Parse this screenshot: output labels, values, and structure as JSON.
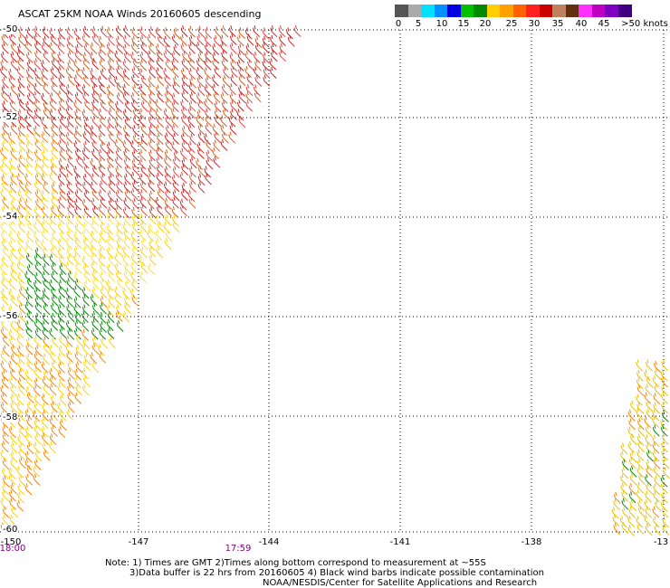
{
  "title": "ASCAT 25KM NOAA Winds 20160605 descending",
  "legend": {
    "colors": [
      "#555555",
      "#aaaaaa",
      "#00e0ff",
      "#0090ff",
      "#0000e0",
      "#00c000",
      "#008800",
      "#ffd000",
      "#ffa000",
      "#ff6000",
      "#ff2020",
      "#cc0000",
      "#c08060",
      "#603010",
      "#ff30ff",
      "#c000c0",
      "#8000c0",
      "#400080"
    ],
    "ticks": [
      "0",
      "5",
      "10",
      "15",
      "20",
      "25",
      "30",
      "35",
      "40",
      "45",
      ">50 knots"
    ]
  },
  "axes": {
    "lat_labels": [
      "-50",
      "-52",
      "-54",
      "-56",
      "-58",
      "-60"
    ],
    "lon_labels": [
      "-150",
      "-147",
      "-144",
      "-141",
      "-138",
      "-13"
    ]
  },
  "times": [
    "18:00",
    "17:59"
  ],
  "notes": {
    "line1": "Note: 1) Times are GMT 2)Times along bottom correspond to measurement at ~55S",
    "line2": "3)Data buffer is 22 hrs from 20160605 4) Black wind barbs indicate possible contamination",
    "line3": "NOAA/NESDIS/Center for Satellite Applications and Research"
  }
}
